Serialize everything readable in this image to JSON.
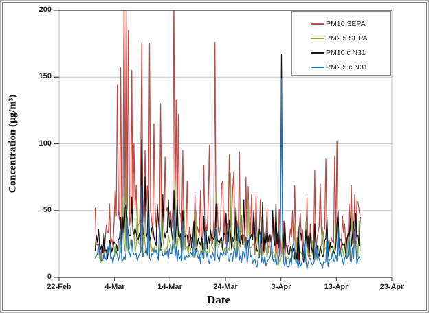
{
  "figure": {
    "background": "#ffffff",
    "outer_border_color": "#b3b3b3",
    "frame_border_color": "#787878"
  },
  "chart_data": {
    "type": "line",
    "title": "",
    "xlabel": "Date",
    "ylabel": "Concentration (µg/m³)",
    "x_tick_labels": [
      "22-Feb",
      "4-Mar",
      "14-Mar",
      "24-Mar",
      "3-Apr",
      "13-Apr",
      "23-Apr"
    ],
    "x_tick_days": [
      0,
      10,
      20,
      30,
      40,
      50,
      60
    ],
    "x_axis_note": "day 0 = 22-Feb, 10-day tick interval; data span approx 1-Mar to 18-Apr",
    "y_tick_labels": [
      "0",
      "50",
      "100",
      "150",
      "200"
    ],
    "y_ticks": [
      0,
      50,
      100,
      150,
      200
    ],
    "ylim": [
      0,
      200
    ],
    "grid": "horizontal gridlines every 50",
    "grid_color": "#c8c8c8",
    "axis_color": "#4a4a4a",
    "side_border_color": "#bdbdbd",
    "legend_position": "top-right inside plot, boxed",
    "sampling": "high-frequency sub-daily noisy series",
    "data_start_day": 6.5,
    "data_end_day": 54.4,
    "point_step_days": 0.2,
    "series": [
      {
        "name": "PM10 SEPA",
        "color": "#be4b48",
        "baseline": [
          [
            6.5,
            22
          ],
          [
            9,
            28
          ],
          [
            11,
            42
          ],
          [
            13,
            45
          ],
          [
            16,
            40
          ],
          [
            20,
            42
          ],
          [
            22,
            35
          ],
          [
            26,
            30
          ],
          [
            29,
            33
          ],
          [
            33,
            32
          ],
          [
            36,
            28
          ],
          [
            40,
            24
          ],
          [
            44,
            26
          ],
          [
            48,
            30
          ],
          [
            52,
            28
          ],
          [
            54.4,
            30
          ]
        ],
        "noise_amp": 14,
        "burst_prob": 0.12,
        "burst_amp": 42,
        "min": 7,
        "spikes": [
          [
            9,
            55
          ],
          [
            10,
            65
          ],
          [
            10.6,
            144
          ],
          [
            11.2,
            157
          ],
          [
            11.7,
            210
          ],
          [
            12.1,
            205
          ],
          [
            12.4,
            185
          ],
          [
            13,
            155
          ],
          [
            13.6,
            100
          ],
          [
            14.9,
            176
          ],
          [
            15.6,
            95
          ],
          [
            16.3,
            175
          ],
          [
            17.2,
            115
          ],
          [
            18.4,
            130
          ],
          [
            19.2,
            90
          ],
          [
            20.6,
            210
          ],
          [
            21.1,
            133
          ],
          [
            21.5,
            122
          ],
          [
            22.3,
            95
          ],
          [
            23.2,
            72
          ],
          [
            24.5,
            62
          ],
          [
            25.5,
            65
          ],
          [
            26.1,
            84
          ],
          [
            27.2,
            99
          ],
          [
            28.2,
            176
          ],
          [
            29.3,
            70
          ],
          [
            30.6,
            92
          ],
          [
            31.5,
            79
          ],
          [
            32.5,
            94
          ],
          [
            33.6,
            75
          ],
          [
            34.8,
            62
          ],
          [
            36.2,
            58
          ],
          [
            37.5,
            52
          ],
          [
            38.6,
            45
          ],
          [
            40.5,
            42
          ],
          [
            42,
            50
          ],
          [
            43.5,
            48
          ],
          [
            44.6,
            60
          ],
          [
            46,
            80
          ],
          [
            47,
            70
          ],
          [
            48,
            89
          ],
          [
            49.6,
            91
          ],
          [
            50.1,
            102
          ],
          [
            51,
            46
          ],
          [
            52.2,
            55
          ],
          [
            53.3,
            62
          ],
          [
            54,
            50
          ]
        ]
      },
      {
        "name": "PM2.5 SEPA",
        "color": "#94ad4d",
        "baseline": [
          [
            6.5,
            15
          ],
          [
            10,
            20
          ],
          [
            13,
            24
          ],
          [
            16,
            22
          ],
          [
            20,
            24
          ],
          [
            24,
            20
          ],
          [
            28,
            22
          ],
          [
            32,
            22
          ],
          [
            36,
            20
          ],
          [
            40,
            16
          ],
          [
            44,
            18
          ],
          [
            48,
            20
          ],
          [
            52,
            22
          ],
          [
            54.4,
            20
          ]
        ],
        "noise_amp": 8,
        "burst_prob": 0.08,
        "burst_amp": 18,
        "min": 4,
        "spikes": [
          [
            11.5,
            60
          ],
          [
            12.2,
            75
          ],
          [
            14,
            55
          ],
          [
            16.1,
            62
          ],
          [
            18.5,
            48
          ],
          [
            20.8,
            72
          ],
          [
            22.5,
            55
          ],
          [
            24.6,
            50
          ],
          [
            28.3,
            63
          ],
          [
            30.8,
            78
          ],
          [
            32.6,
            55
          ],
          [
            34.1,
            58
          ],
          [
            36.5,
            45
          ],
          [
            40.2,
            35
          ],
          [
            42.5,
            40
          ],
          [
            44.5,
            42
          ],
          [
            47.5,
            38
          ],
          [
            50,
            45
          ],
          [
            52.8,
            48
          ],
          [
            54,
            42
          ]
        ]
      },
      {
        "name": "PM10 c N31",
        "color": "#141414",
        "baseline": [
          [
            6.5,
            24
          ],
          [
            9,
            22
          ],
          [
            12,
            30
          ],
          [
            15,
            34
          ],
          [
            18,
            30
          ],
          [
            21,
            32
          ],
          [
            24,
            24
          ],
          [
            28,
            28
          ],
          [
            31,
            30
          ],
          [
            34,
            26
          ],
          [
            37,
            28
          ],
          [
            40,
            22
          ],
          [
            44,
            18
          ],
          [
            48,
            20
          ],
          [
            51,
            24
          ],
          [
            54.4,
            30
          ]
        ],
        "noise_amp": 10,
        "burst_prob": 0.1,
        "burst_amp": 22,
        "min": 6,
        "spikes": [
          [
            7,
            36
          ],
          [
            8.2,
            33
          ],
          [
            11,
            45
          ],
          [
            12.2,
            55
          ],
          [
            13.1,
            60
          ],
          [
            14.9,
            103
          ],
          [
            15.4,
            75
          ],
          [
            16.2,
            65
          ],
          [
            17.6,
            55
          ],
          [
            18.6,
            62
          ],
          [
            19.6,
            58
          ],
          [
            20.6,
            65
          ],
          [
            21.3,
            58
          ],
          [
            22.4,
            50
          ],
          [
            24.3,
            42
          ],
          [
            26.2,
            46
          ],
          [
            28.4,
            55
          ],
          [
            30.2,
            48
          ],
          [
            31.8,
            52
          ],
          [
            33.2,
            58
          ],
          [
            35,
            50
          ],
          [
            36.8,
            56
          ],
          [
            39,
            55
          ],
          [
            40,
            167
          ],
          [
            40.8,
            42
          ],
          [
            43,
            38
          ],
          [
            46,
            40
          ],
          [
            48.2,
            45
          ],
          [
            50.2,
            50
          ],
          [
            52.5,
            44
          ],
          [
            53.5,
            48
          ],
          [
            54.2,
            45
          ]
        ]
      },
      {
        "name": "PM2.5 c N31",
        "color": "#2673bc",
        "baseline": [
          [
            6.5,
            13
          ],
          [
            10,
            15
          ],
          [
            13,
            18
          ],
          [
            16,
            17
          ],
          [
            20,
            18
          ],
          [
            24,
            14
          ],
          [
            28,
            15
          ],
          [
            32,
            16
          ],
          [
            36,
            13
          ],
          [
            40,
            12
          ],
          [
            44,
            11
          ],
          [
            48,
            12
          ],
          [
            52,
            14
          ],
          [
            54.4,
            13
          ]
        ],
        "noise_amp": 6,
        "burst_prob": 0.08,
        "burst_amp": 12,
        "min": 3,
        "spikes": [
          [
            7.1,
            25
          ],
          [
            11.2,
            35
          ],
          [
            12.3,
            45
          ],
          [
            14.9,
            69
          ],
          [
            16.2,
            45
          ],
          [
            18.2,
            40
          ],
          [
            20.6,
            50
          ],
          [
            22.3,
            42
          ],
          [
            24.4,
            30
          ],
          [
            26.3,
            34
          ],
          [
            28.3,
            36
          ],
          [
            30.4,
            32
          ],
          [
            32.3,
            38
          ],
          [
            34.4,
            30
          ],
          [
            36.4,
            32
          ],
          [
            38.3,
            28
          ],
          [
            40,
            149
          ],
          [
            42.3,
            26
          ],
          [
            44.4,
            28
          ],
          [
            46.3,
            26
          ],
          [
            48.2,
            32
          ],
          [
            50.2,
            38
          ],
          [
            52.4,
            30
          ],
          [
            53.4,
            35
          ]
        ]
      }
    ],
    "notable_points": [
      {
        "series": "PM10 c N31",
        "date": "3-Apr",
        "value": 167
      },
      {
        "series": "PM2.5 c N31",
        "date": "3-Apr",
        "value": 149
      },
      {
        "series": "PM10 SEPA",
        "date": "5-7 Mar",
        "value": "≥200 (clipped at axis max)"
      },
      {
        "series": "PM10 SEPA",
        "date": "14-Mar",
        "value": "≥200 (clipped at axis max)"
      },
      {
        "series": "PM10 SEPA",
        "date": "9-Mar",
        "value": 176
      },
      {
        "series": "PM10 SEPA",
        "date": "22-Mar",
        "value": 176
      },
      {
        "series": "PM10 SEPA",
        "date": "13-Apr",
        "value": 102
      },
      {
        "series": "PM10 c N31",
        "date": "9-Mar",
        "value": 103
      }
    ]
  }
}
